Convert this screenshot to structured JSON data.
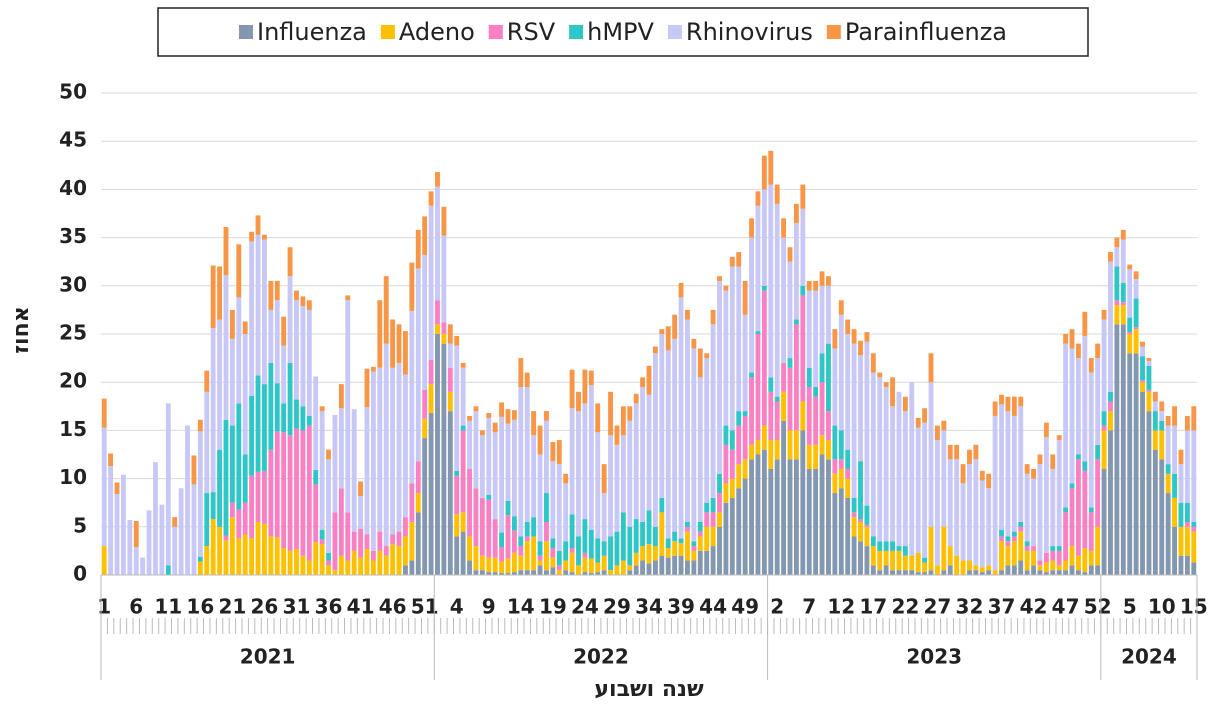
{
  "chart_data": {
    "type": "stacked_bar",
    "x_label": "שנה ושבוע",
    "y_label": "אחוז",
    "categories": [
      1,
      null,
      null,
      null,
      null,
      6,
      null,
      null,
      null,
      null,
      11,
      null,
      null,
      null,
      null,
      16,
      null,
      null,
      null,
      null,
      21,
      null,
      null,
      null,
      null,
      26,
      null,
      null,
      null,
      null,
      31,
      null,
      null,
      null,
      null,
      36,
      null,
      null,
      null,
      null,
      41,
      null,
      null,
      null,
      null,
      46,
      null,
      null,
      null,
      null,
      51,
      null,
      null,
      null,
      null,
      4,
      null,
      null,
      null,
      null,
      9,
      null,
      null,
      null,
      null,
      14,
      null,
      null,
      null,
      null,
      19,
      null,
      null,
      null,
      null,
      24,
      null,
      null,
      null,
      null,
      29,
      null,
      null,
      null,
      null,
      34,
      null,
      null,
      null,
      null,
      39,
      null,
      null,
      null,
      null,
      44,
      null,
      null,
      null,
      null,
      49,
      null,
      null,
      null,
      null,
      2,
      null,
      null,
      null,
      null,
      7,
      null,
      null,
      null,
      null,
      12,
      null,
      null,
      null,
      null,
      17,
      null,
      null,
      null,
      null,
      22,
      null,
      null,
      null,
      null,
      27,
      null,
      null,
      null,
      null,
      32,
      null,
      null,
      null,
      null,
      37,
      null,
      null,
      null,
      null,
      42,
      null,
      null,
      null,
      null,
      47,
      null,
      null,
      null,
      null,
      52,
      null,
      null,
      null,
      null,
      5,
      null,
      null,
      null,
      null,
      10,
      null,
      null,
      null,
      null,
      15
    ],
    "groups": [
      {
        "label": "2021",
        "weeks": 52
      },
      {
        "label": "2022",
        "weeks": 52
      },
      {
        "label": "2023",
        "weeks": 52
      },
      {
        "label": "2024",
        "weeks": 15
      }
    ],
    "series": [
      {
        "name": "Influenza",
        "color": "#8497b0",
        "values": [
          0,
          0,
          0,
          0,
          0,
          0,
          0,
          0,
          0,
          0,
          0,
          0,
          0,
          0,
          0,
          0,
          0,
          0,
          0,
          0,
          0,
          0,
          0,
          0,
          0,
          0,
          0,
          0,
          0,
          0,
          0,
          0,
          0,
          0,
          0,
          0,
          0,
          0,
          0,
          0,
          0,
          0,
          0,
          0,
          0,
          0,
          0,
          1,
          1.5,
          6.5,
          14.2,
          16.8,
          25,
          24,
          17,
          4,
          4.5,
          1.5,
          0.5,
          0.5,
          0.3,
          0.3,
          0.2,
          0.2,
          0.3,
          0.5,
          0.5,
          0.5,
          1,
          0.5,
          0.8,
          0,
          0.5,
          0.3,
          0,
          0.3,
          0.2,
          0.3,
          0.5,
          0,
          0,
          0,
          0.5,
          1,
          1.5,
          1.2,
          1.5,
          2,
          1.8,
          2,
          2,
          1.5,
          1.5,
          2.5,
          2.5,
          3,
          5,
          7.5,
          8,
          9,
          10,
          12,
          12.5,
          13,
          11,
          12,
          16,
          12,
          12,
          15,
          11,
          11,
          12.5,
          12,
          8.5,
          9,
          8,
          4,
          3.5,
          3,
          1,
          0.5,
          1,
          0.5,
          0.5,
          0.5,
          0.5,
          0.3,
          0.3,
          0.5,
          0,
          0.5,
          1,
          0,
          0,
          0.5,
          0.5,
          0.3,
          0.5,
          0,
          0.5,
          1,
          1,
          1.5,
          0.5,
          1,
          0.5,
          0.3,
          0.5,
          0.5,
          0.5,
          1,
          0.5,
          0.3,
          1,
          1,
          11,
          15,
          26,
          26,
          23,
          23,
          19,
          17,
          13,
          12,
          8.5,
          5,
          2,
          2,
          1.3
        ]
      },
      {
        "name": "Adeno",
        "color": "#ffc000",
        "values": [
          3,
          0,
          0,
          0,
          0,
          0,
          0,
          0,
          0,
          0,
          0,
          0,
          0,
          0,
          0,
          1.4,
          3,
          5.8,
          5,
          3.6,
          6,
          3.8,
          4.2,
          3.8,
          5.5,
          5.3,
          4,
          3.9,
          2.8,
          2.5,
          2.7,
          2,
          1.5,
          3.4,
          3.2,
          1,
          0.5,
          2,
          1.5,
          2.5,
          1.8,
          2.7,
          1.5,
          2.5,
          2,
          3.2,
          3,
          3,
          4,
          2,
          2,
          3,
          1,
          1,
          2,
          2.3,
          2,
          2.5,
          2.5,
          1.5,
          1.5,
          1.5,
          1.2,
          1.5,
          2,
          1.5,
          3,
          3.5,
          0.5,
          3,
          1,
          0.5,
          1,
          2,
          1,
          1.5,
          1.5,
          1,
          1.5,
          0.5,
          1,
          1.5,
          0.5,
          1.3,
          1.5,
          2,
          1.5,
          4.5,
          1,
          1.5,
          1.3,
          3,
          1,
          1.5,
          2.5,
          2,
          1.5,
          2,
          2,
          2.5,
          2,
          1.5,
          1.5,
          2.5,
          3,
          2,
          3,
          3,
          3,
          3,
          2.5,
          2.5,
          2,
          2,
          2,
          2,
          2,
          2,
          2,
          2,
          2,
          2,
          1.5,
          2,
          2,
          1.5,
          1.5,
          2,
          1,
          4.5,
          1,
          4.5,
          2,
          2,
          1.5,
          1,
          0.5,
          0.5,
          0.5,
          0.5,
          3,
          2,
          2.5,
          3,
          2,
          1.5,
          0.5,
          1,
          1,
          0.5,
          1,
          2,
          1.5,
          2.5,
          1.5,
          4,
          4,
          2,
          2,
          2,
          2,
          2.5,
          1,
          2,
          2,
          3,
          2,
          3,
          3,
          3,
          3.2
        ]
      },
      {
        "name": "RSV",
        "color": "#f981c3",
        "values": [
          0,
          0,
          0,
          0,
          0,
          0,
          0,
          0,
          0,
          0,
          0,
          0,
          0,
          0,
          0,
          0,
          0,
          0,
          0,
          0.5,
          1.5,
          3,
          3.3,
          6.5,
          5.2,
          5.5,
          9,
          11,
          12,
          12,
          12.5,
          13,
          14,
          6,
          0.5,
          0.5,
          6,
          7,
          5,
          2,
          3,
          1.5,
          1,
          2,
          1,
          1,
          1.5,
          2,
          4,
          3.3,
          3,
          2.5,
          2.5,
          1.2,
          2.5,
          4,
          8.5,
          7,
          6,
          6,
          6,
          4,
          1.5,
          4.5,
          2.3,
          1,
          0.5,
          0,
          0.5,
          2,
          1,
          0.5,
          0,
          0.5,
          0,
          0.5,
          0,
          0,
          0,
          0,
          0,
          0,
          0,
          0,
          0,
          0,
          0,
          0,
          0,
          0,
          0,
          0.5,
          0.5,
          0.5,
          1.5,
          1.5,
          2,
          4,
          3,
          4,
          4.5,
          7,
          11,
          14,
          5,
          4,
          3,
          6.5,
          11,
          11,
          6,
          5,
          5.5,
          3,
          1.5,
          1,
          1,
          0.5,
          0.3,
          0.2,
          0,
          0,
          0,
          0,
          0,
          0,
          0,
          0,
          0,
          0,
          0,
          0,
          0,
          0,
          0,
          0,
          0,
          0,
          0,
          0,
          0.5,
          0.5,
          0.5,
          0.5,
          0.5,
          0.5,
          0.5,
          1,
          1,
          1.5,
          5,
          6,
          10,
          8,
          4,
          7,
          0.5,
          1,
          0.5,
          0.3,
          0.2,
          0.2,
          0.2,
          0.2,
          0,
          0,
          0,
          0,
          0,
          0.5,
          0.5
        ]
      },
      {
        "name": "hMPV",
        "color": "#2ec6c6",
        "values": [
          0,
          0,
          0,
          0,
          0,
          0,
          0,
          0,
          0,
          0,
          1,
          0,
          0,
          0,
          0,
          0.5,
          5.5,
          2.8,
          8,
          12,
          8,
          11,
          5,
          8.3,
          10,
          9,
          9,
          5,
          3,
          7.5,
          3,
          2.5,
          1,
          1.5,
          1,
          0.8,
          0,
          0,
          0,
          0,
          0,
          0,
          0,
          0,
          0,
          0,
          0,
          0,
          0,
          0,
          0,
          0,
          0,
          0,
          0,
          0.5,
          0.5,
          0,
          0,
          0,
          0.5,
          0,
          1.5,
          1.5,
          1.5,
          1,
          1.5,
          2,
          1.5,
          3,
          1,
          1.5,
          2,
          3.5,
          3,
          3.5,
          3,
          2.5,
          1.5,
          3.5,
          3.5,
          5,
          4,
          3.5,
          2.5,
          3.5,
          2,
          1.5,
          1,
          1,
          0.5,
          0.5,
          0.5,
          1,
          1,
          1.5,
          2,
          2,
          2,
          1.5,
          0.5,
          0.5,
          0.3,
          0.5,
          1.5,
          0.5,
          0,
          1,
          0.5,
          1,
          2,
          1,
          3,
          7,
          3.5,
          3,
          2,
          1.5,
          6,
          2,
          1,
          1,
          1,
          1,
          0.5,
          1,
          0,
          0,
          0.5,
          0,
          0,
          0,
          0,
          0,
          0,
          0,
          0,
          0,
          0,
          0,
          0.7,
          0.5,
          0.5,
          0.5,
          0.5,
          0,
          0,
          0,
          0.5,
          0.5,
          0.5,
          0.5,
          0.5,
          1,
          0.5,
          1.5,
          1.5,
          1,
          3.5,
          2,
          1.5,
          3,
          2.5,
          2.5,
          2,
          1,
          1,
          2.5,
          2.5,
          2,
          0.5
        ]
      },
      {
        "name": "Rhinovirus",
        "color": "#c8c8f6",
        "values": [
          12.3,
          11.3,
          8.4,
          10.4,
          5.7,
          2.9,
          1.8,
          6.7,
          11.7,
          7.3,
          16.8,
          5,
          9,
          15.5,
          9.4,
          13,
          10.5,
          17,
          13.5,
          15,
          9,
          11,
          12.5,
          16,
          14.6,
          15,
          5.5,
          8.6,
          6,
          9,
          10.3,
          10.4,
          11,
          9.7,
          12.3,
          9.7,
          10.1,
          8.3,
          22,
          12.7,
          3.4,
          13.2,
          18.6,
          17,
          21,
          17.3,
          17.5,
          14.8,
          17.9,
          20,
          14,
          16,
          11.8,
          9,
          2.5,
          13,
          6,
          5,
          8,
          6.5,
          8,
          9,
          12,
          8,
          10,
          15.5,
          14,
          8.5,
          9,
          7.5,
          8,
          9,
          6,
          11,
          13,
          12,
          15,
          11,
          5,
          10.5,
          9,
          8,
          11,
          12,
          14,
          12,
          18,
          17,
          19.5,
          20,
          25,
          21,
          20,
          15,
          15,
          18,
          20,
          14,
          17,
          15,
          10,
          14,
          13,
          10,
          20,
          20,
          13,
          10,
          10,
          8,
          8,
          10,
          7,
          6,
          8,
          12,
          12,
          16,
          11,
          17,
          17,
          17,
          16,
          14,
          16,
          14,
          18,
          13,
          14,
          15,
          13,
          10,
          9,
          10,
          8,
          10,
          11,
          9,
          8,
          16,
          13,
          13,
          12,
          12,
          7,
          7,
          10,
          12,
          8,
          11,
          17,
          14,
          10,
          13,
          14,
          9,
          9.5,
          13.5,
          2,
          4.5,
          5,
          2,
          1,
          0.5,
          1,
          1,
          4,
          5,
          4,
          7.5,
          9.5
        ]
      },
      {
        "name": "Parainfluenza",
        "color": "#f79646",
        "values": [
          3,
          1.3,
          1.2,
          0,
          0,
          2.7,
          0,
          0,
          0,
          0,
          0,
          1,
          0,
          0,
          3,
          1.2,
          2.2,
          6.5,
          5.5,
          5,
          3,
          5.5,
          1.3,
          1,
          2,
          0.5,
          3,
          2,
          3,
          3,
          1,
          1,
          1,
          0,
          0.5,
          1,
          0,
          2.5,
          0.5,
          0,
          1.5,
          4,
          0.5,
          7,
          7,
          5,
          4,
          4.5,
          5,
          4,
          4,
          1.5,
          1.5,
          3,
          2,
          1,
          0.5,
          0.5,
          0.5,
          0.5,
          0.5,
          1,
          1.5,
          1.5,
          1,
          3,
          1.5,
          2.5,
          3,
          1,
          2,
          2.5,
          1,
          4,
          2,
          3.5,
          1.5,
          3,
          3,
          4.5,
          2,
          3,
          1.5,
          1,
          1,
          3,
          0.7,
          0.5,
          2.5,
          2.5,
          1.5,
          1,
          1,
          3,
          0.5,
          1.5,
          0.5,
          0.5,
          1,
          1.5,
          3.5,
          2,
          1.5,
          3.5,
          3.5,
          2,
          2,
          1.5,
          2,
          2.5,
          1,
          1,
          1.5,
          1,
          2,
          1.5,
          1.5,
          1.5,
          1.5,
          1,
          2,
          0.5,
          0.5,
          3,
          0,
          1.5,
          0,
          1,
          1.5,
          3,
          1.5,
          1,
          1.5,
          1.5,
          2,
          1.5,
          1.5,
          1,
          1.5,
          1.5,
          1,
          1.5,
          2,
          1,
          1,
          1,
          1,
          1.5,
          1.5,
          0.5,
          1,
          2,
          1.5,
          2.5,
          1.5,
          1.5,
          1,
          1,
          1,
          1,
          0.5,
          0.8,
          0.5,
          0.3,
          1,
          1,
          1,
          2,
          1.5,
          1.5,
          2.5
        ]
      }
    ],
    "ylim": [
      0,
      50
    ],
    "yticks": [
      0,
      5,
      10,
      15,
      20,
      25,
      30,
      35,
      40,
      45,
      50
    ],
    "grid": true,
    "legend": "top"
  }
}
